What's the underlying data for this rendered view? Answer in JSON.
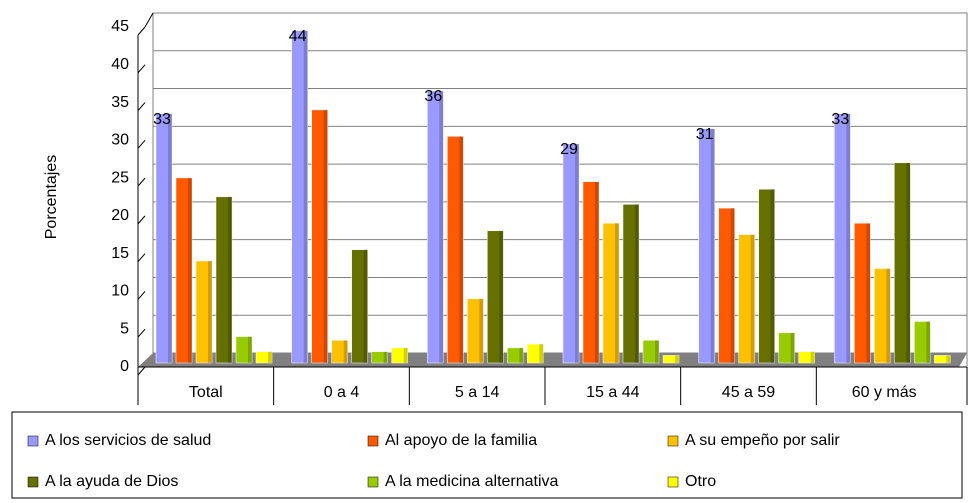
{
  "chart_data": {
    "type": "bar",
    "y_label": "Porcentajes",
    "categories": [
      "Total",
      "0 a 4",
      "5 a 14",
      "15 a 44",
      "45 a 59",
      "60 y más"
    ],
    "series": [
      {
        "name": "A los servicios de salud",
        "color": "#9999ff",
        "values": [
          33,
          44,
          36,
          29,
          31,
          33
        ],
        "data_labels": true
      },
      {
        "name": "Al apoyo de la familia",
        "color": "#ff5a00",
        "values": [
          24.5,
          33.5,
          30,
          24,
          20.5,
          18.5
        ]
      },
      {
        "name": "A su empeño por salir",
        "color": "#ffc000",
        "values": [
          13.5,
          3,
          8.5,
          18.5,
          17,
          12.5
        ]
      },
      {
        "name": "A la ayuda de Dios",
        "color": "#667000",
        "values": [
          22,
          15,
          17.5,
          21,
          23,
          26.5
        ]
      },
      {
        "name": "A la medicina alternativa",
        "color": "#99cc00",
        "values": [
          3.5,
          1.5,
          2,
          3,
          4,
          5.5
        ]
      },
      {
        "name": "Otro",
        "color": "#ffff00",
        "values": [
          1.5,
          2,
          2.5,
          1,
          1.5,
          1
        ]
      }
    ],
    "ylim": [
      0,
      45
    ],
    "yticks": [
      0,
      5,
      10,
      15,
      20,
      25,
      30,
      35,
      40,
      45
    ],
    "grid": true,
    "legend": "bottom"
  }
}
